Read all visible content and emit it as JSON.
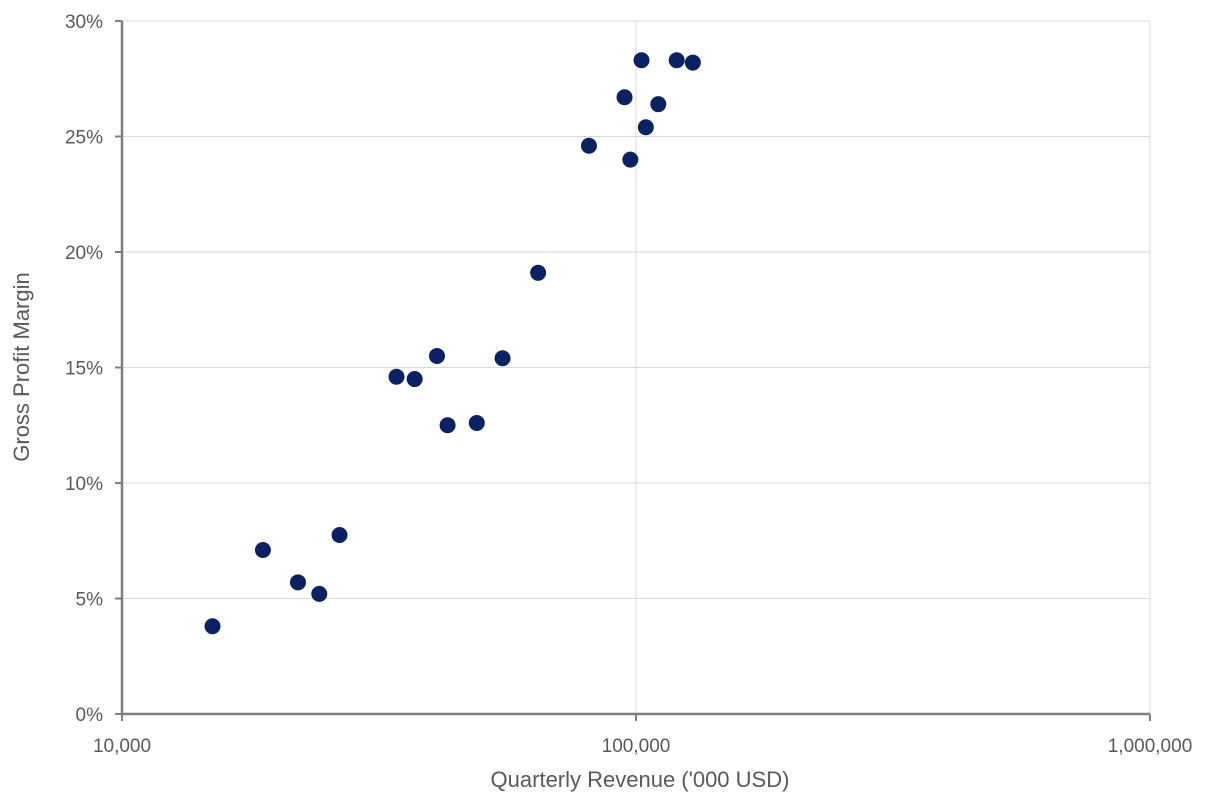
{
  "chart_data": {
    "type": "scatter",
    "title": "",
    "xlabel": "Quarterly Revenue ('000 USD)",
    "ylabel": "Gross Profit Margin",
    "x_scale": "log",
    "xlim": [
      10000,
      1000000
    ],
    "ylim": [
      0,
      0.3
    ],
    "x_ticks": [
      {
        "value": 10000,
        "label": "10,000"
      },
      {
        "value": 100000,
        "label": "100,000"
      },
      {
        "value": 1000000,
        "label": "1,000,000"
      }
    ],
    "y_ticks": [
      {
        "value": 0,
        "label": "0%"
      },
      {
        "value": 0.05,
        "label": "5%"
      },
      {
        "value": 0.1,
        "label": "10%"
      },
      {
        "value": 0.15,
        "label": "15%"
      },
      {
        "value": 0.2,
        "label": "20%"
      },
      {
        "value": 0.25,
        "label": "25%"
      },
      {
        "value": 0.3,
        "label": "30%"
      }
    ],
    "grid": true,
    "legend": "none",
    "series": [
      {
        "color": "#0b2161",
        "points": [
          {
            "x": 15000,
            "y": 0.038
          },
          {
            "x": 18800,
            "y": 0.071
          },
          {
            "x": 22000,
            "y": 0.057
          },
          {
            "x": 24200,
            "y": 0.052
          },
          {
            "x": 26500,
            "y": 0.0775
          },
          {
            "x": 34200,
            "y": 0.146
          },
          {
            "x": 37100,
            "y": 0.145
          },
          {
            "x": 41000,
            "y": 0.155
          },
          {
            "x": 43000,
            "y": 0.125
          },
          {
            "x": 49000,
            "y": 0.126
          },
          {
            "x": 55000,
            "y": 0.154
          },
          {
            "x": 64500,
            "y": 0.191
          },
          {
            "x": 81000,
            "y": 0.246
          },
          {
            "x": 95000,
            "y": 0.267
          },
          {
            "x": 97500,
            "y": 0.24
          },
          {
            "x": 102500,
            "y": 0.283
          },
          {
            "x": 104500,
            "y": 0.254
          },
          {
            "x": 110500,
            "y": 0.264
          },
          {
            "x": 120000,
            "y": 0.283
          },
          {
            "x": 129000,
            "y": 0.282
          }
        ]
      }
    ]
  }
}
